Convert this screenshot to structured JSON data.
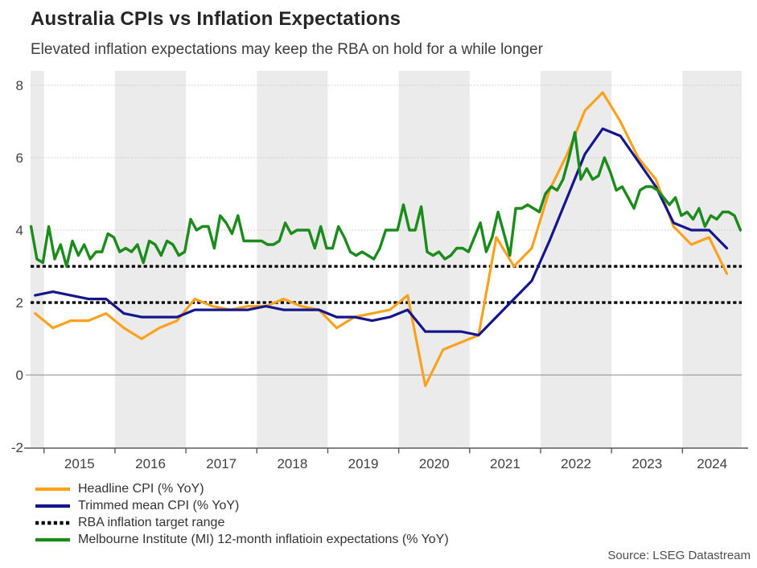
{
  "header": {
    "title": "Australia CPIs vs Inflation Expectations",
    "subtitle": "Elevated inflation expectations may keep the RBA on hold for a while longer"
  },
  "footer": {
    "source": "Source: LSEG Datastream"
  },
  "chart_data": {
    "type": "line",
    "title": "Australia CPIs vs Inflation Expectations",
    "subtitle": "Elevated inflation expectations may keep the RBA on hold for a while longer",
    "source": "Source: LSEG Datastream",
    "x_range": [
      2014.81,
      2024.835
    ],
    "y_range": [
      -2.02,
      8.4
    ],
    "x_ticks": [
      2015,
      2016,
      2017,
      2018,
      2019,
      2020,
      2021,
      2022,
      2023,
      2024
    ],
    "x_tick_labels": [
      "2015",
      "2016",
      "2017",
      "2018",
      "2019",
      "2020",
      "2021",
      "2022",
      "2023",
      "2024"
    ],
    "y_ticks": [
      -2,
      0,
      2,
      4,
      6,
      8
    ],
    "dotted_gridlines": [
      4,
      6,
      8
    ],
    "zero_line": 0,
    "shaded_years": [
      2014,
      2016,
      2018,
      2020,
      2022,
      2024
    ],
    "band_color": "#ebebeb",
    "grid_color": "#c9c9c9",
    "zero_line_color": "#a8a8a8",
    "axis_color": "#5a5a5a",
    "tick_label_color": "#404040",
    "rba_target": {
      "label": "RBA inflation target range",
      "values": [
        2,
        3
      ],
      "color": "#000000"
    },
    "series": [
      {
        "name": "Headline CPI (% YoY)",
        "color": "#FAA21E",
        "freq": "quarterly",
        "x_start": 2014.875,
        "x_step": 0.25,
        "values": [
          1.7,
          1.3,
          1.5,
          1.5,
          1.7,
          1.3,
          1.0,
          1.3,
          1.5,
          2.1,
          1.9,
          1.8,
          1.9,
          1.9,
          2.1,
          1.9,
          1.8,
          1.3,
          1.6,
          1.7,
          1.8,
          2.2,
          -0.3,
          0.7,
          0.9,
          1.1,
          3.8,
          3.0,
          3.5,
          5.1,
          6.1,
          7.3,
          7.8,
          7.0,
          6.0,
          5.4,
          4.1,
          3.6,
          3.8,
          2.8
        ]
      },
      {
        "name": "Trimmed mean CPI (% YoY)",
        "color": "#16168C",
        "freq": "quarterly",
        "x_start": 2014.875,
        "x_step": 0.25,
        "values": [
          2.2,
          2.3,
          2.2,
          2.1,
          2.1,
          1.7,
          1.6,
          1.6,
          1.6,
          1.8,
          1.8,
          1.8,
          1.8,
          1.9,
          1.8,
          1.8,
          1.8,
          1.6,
          1.6,
          1.5,
          1.6,
          1.8,
          1.2,
          1.2,
          1.2,
          1.1,
          1.6,
          2.1,
          2.6,
          3.7,
          4.9,
          6.1,
          6.8,
          6.6,
          5.9,
          5.2,
          4.2,
          4.0,
          4.0,
          3.5
        ]
      },
      {
        "name": "Melbourne Institute (MI) 12-month inflatioin expectations (% YoY)",
        "color": "#1B8C1B",
        "freq": "monthly",
        "x_start": 2014.81667,
        "x_step": 0.0833333,
        "values": [
          4.1,
          3.2,
          3.1,
          4.1,
          3.2,
          3.6,
          3.0,
          3.7,
          3.3,
          3.6,
          3.2,
          3.4,
          3.4,
          3.9,
          3.8,
          3.4,
          3.5,
          3.4,
          3.6,
          3.1,
          3.7,
          3.6,
          3.3,
          3.7,
          3.6,
          3.3,
          3.4,
          4.3,
          4.0,
          4.1,
          4.1,
          3.5,
          4.4,
          4.2,
          3.9,
          4.4,
          3.7,
          3.7,
          3.7,
          3.7,
          3.6,
          3.6,
          3.7,
          4.2,
          3.9,
          4.0,
          4.0,
          4.0,
          3.5,
          4.1,
          3.5,
          3.5,
          4.1,
          3.8,
          3.4,
          3.3,
          3.4,
          3.3,
          3.2,
          3.5,
          4.0,
          4.0,
          4.0,
          4.7,
          4.0,
          4.0,
          4.65,
          3.4,
          3.3,
          3.4,
          3.2,
          3.3,
          3.5,
          3.5,
          3.4,
          3.8,
          4.2,
          3.4,
          3.8,
          4.5,
          3.9,
          3.3,
          4.6,
          4.6,
          4.7,
          4.6,
          4.5,
          5.0,
          5.2,
          5.1,
          5.4,
          6.0,
          6.7,
          5.4,
          5.7,
          5.4,
          5.5,
          6.0,
          5.6,
          5.1,
          5.2,
          4.9,
          4.6,
          5.1,
          5.2,
          5.2,
          5.1,
          4.9,
          4.7,
          4.9,
          4.4,
          4.5,
          4.3,
          4.6,
          4.1,
          4.4,
          4.3,
          4.5,
          4.5,
          4.4,
          4.0
        ]
      }
    ],
    "legend": [
      {
        "label": "Headline CPI (% YoY)",
        "color": "#FAA21E",
        "style": "solid"
      },
      {
        "label": "Trimmed mean CPI (% YoY)",
        "color": "#16168C",
        "style": "solid"
      },
      {
        "label": "RBA inflation target range",
        "color": "#000000",
        "style": "dotted"
      },
      {
        "label": "Melbourne Institute (MI) 12-month inflatioin expectations (% YoY)",
        "color": "#1B8C1B",
        "style": "solid"
      }
    ]
  }
}
